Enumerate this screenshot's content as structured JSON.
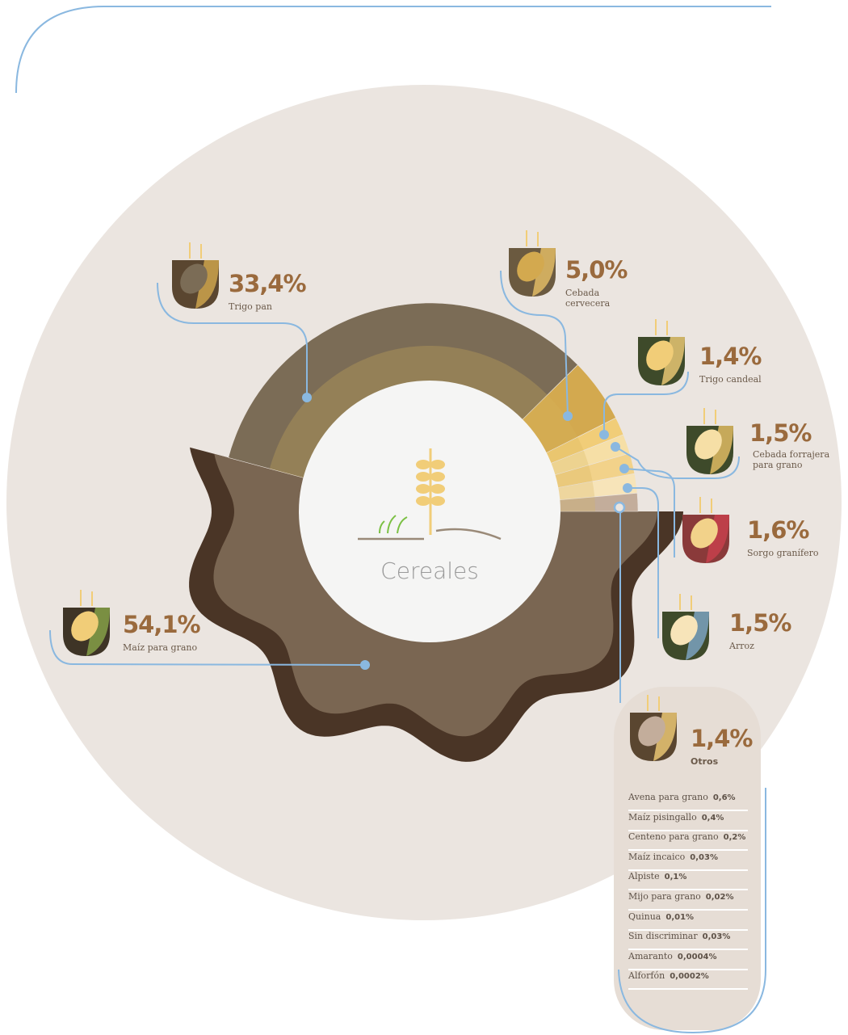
{
  "chart_data": {
    "type": "donut",
    "center_label": "Cereales",
    "categories": [
      "Maíz para grano",
      "Trigo pan",
      "Cebada cervecera",
      "Trigo candeal",
      "Cebada forrajera para grano",
      "Sorgo granífero",
      "Arroz",
      "Otros"
    ],
    "values": [
      54.1,
      33.4,
      5.0,
      1.4,
      1.5,
      1.6,
      1.5,
      1.4
    ],
    "value_labels": [
      "54,1%",
      "33,4%",
      "5,0%",
      "1,4%",
      "1,5%",
      "1,6%",
      "1,5%",
      "1,4%"
    ],
    "colors": [
      "#7a6652",
      "#7b6c56",
      "#d3a94f",
      "#f1cd78",
      "#f6dfa6",
      "#f2d28a",
      "#f7e4b9",
      "#c3ad9b"
    ],
    "otros_detalle": [
      {
        "name": "Avena para grano",
        "share": "0,6%"
      },
      {
        "name": "Maíz pisingallo",
        "share": "0,4%"
      },
      {
        "name": "Centeno para grano",
        "share": "0,2%"
      },
      {
        "name": "Maíz incaico",
        "share": "0,03%"
      },
      {
        "name": "Alpiste",
        "share": "0,1%"
      },
      {
        "name": "Mijo para grano",
        "share": "0,02%"
      },
      {
        "name": "Quinua",
        "share": "0,01%"
      },
      {
        "name": "Sin discriminar",
        "share": "0,03%"
      },
      {
        "name": "Amaranto",
        "share": "0,0004%"
      },
      {
        "name": "Alforfón",
        "share": "0,0002%"
      }
    ]
  }
}
